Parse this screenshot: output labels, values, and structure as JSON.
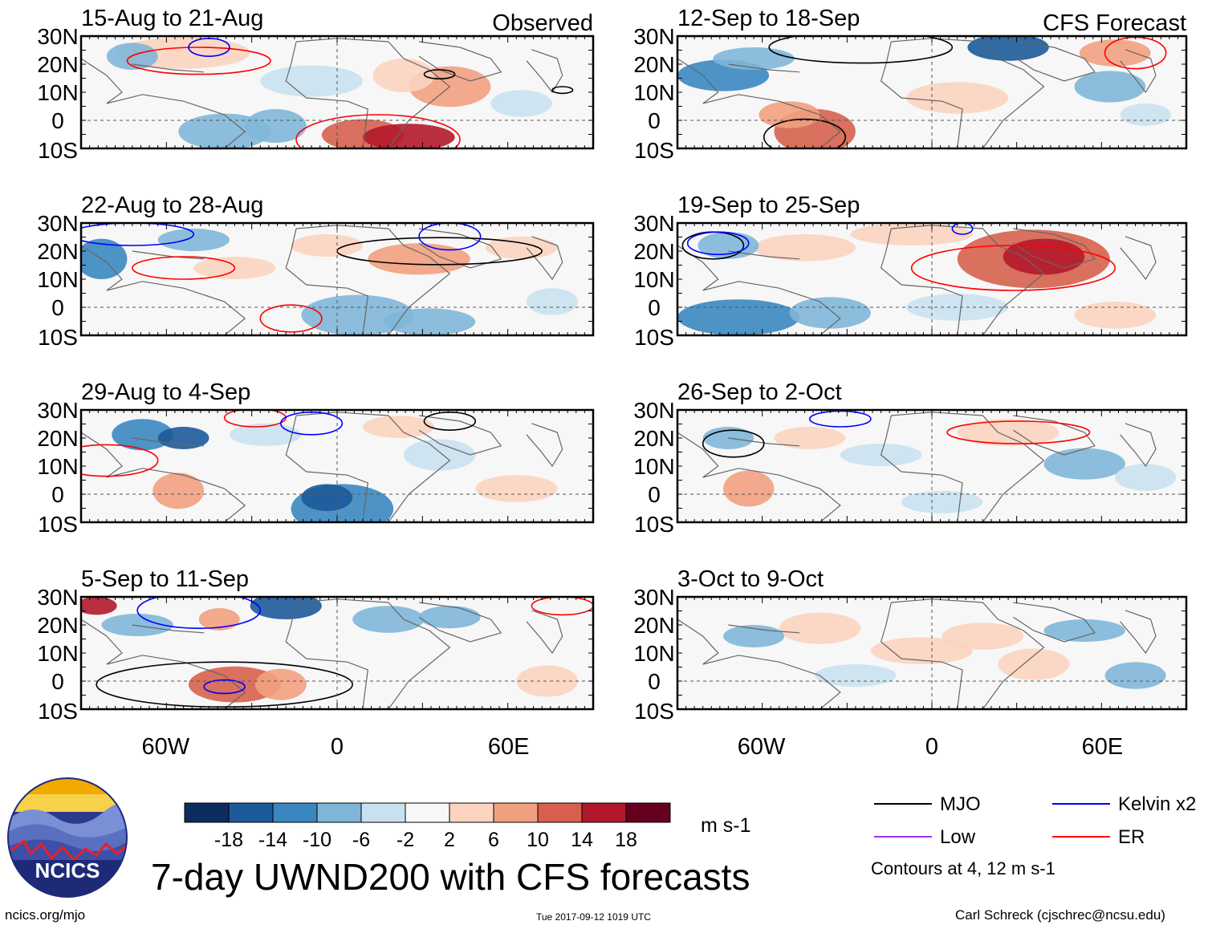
{
  "title": "7-day UWND200 with CFS forecasts",
  "panel_headers": {
    "observed": "Observed",
    "forecast": "CFS Forecast"
  },
  "panels": [
    {
      "id": "p1",
      "label": "15-Aug to 21-Aug",
      "kind": "observed"
    },
    {
      "id": "p2",
      "label": "22-Aug to 28-Aug",
      "kind": "observed"
    },
    {
      "id": "p3",
      "label": "29-Aug to 4-Sep",
      "kind": "observed"
    },
    {
      "id": "p4",
      "label": "5-Sep to 11-Sep",
      "kind": "observed"
    },
    {
      "id": "p5",
      "label": "12-Sep to 18-Sep",
      "kind": "forecast"
    },
    {
      "id": "p6",
      "label": "19-Sep to 25-Sep",
      "kind": "forecast"
    },
    {
      "id": "p7",
      "label": "26-Sep to 2-Oct",
      "kind": "forecast"
    },
    {
      "id": "p8",
      "label": "3-Oct to 9-Oct",
      "kind": "forecast"
    }
  ],
  "lat_ticks": [
    "30N",
    "20N",
    "10N",
    "0",
    "10S"
  ],
  "lon_ticks": [
    "60W",
    "0",
    "60E"
  ],
  "colorbar": {
    "units": "m s-1",
    "tick_labels": [
      "-18",
      "-14",
      "-10",
      "-6",
      "-2",
      "2",
      "6",
      "10",
      "14",
      "18"
    ],
    "colors": [
      "#0d2d5e",
      "#1c5a99",
      "#3a87c0",
      "#7fb6d8",
      "#c9e1ef",
      "#f7f7f7",
      "#fbd3bf",
      "#f1a07f",
      "#d6604d",
      "#b2182b",
      "#67001f"
    ]
  },
  "legend": {
    "items": [
      {
        "label": "MJO",
        "color": "#000000"
      },
      {
        "label": "Kelvin x2",
        "color": "#0000ff"
      },
      {
        "label": "Low",
        "color": "#9b30ff"
      },
      {
        "label": "ER",
        "color": "#ff0000"
      }
    ],
    "note": "Contours at 4, 12 m s-1"
  },
  "logo": {
    "text": "NCICS"
  },
  "footer": {
    "site": "ncics.org/mjo",
    "timestamp": "Tue 2017-09-12 1019 UTC",
    "author": "Carl Schreck (cjschrec@ncsu.edu)"
  }
}
